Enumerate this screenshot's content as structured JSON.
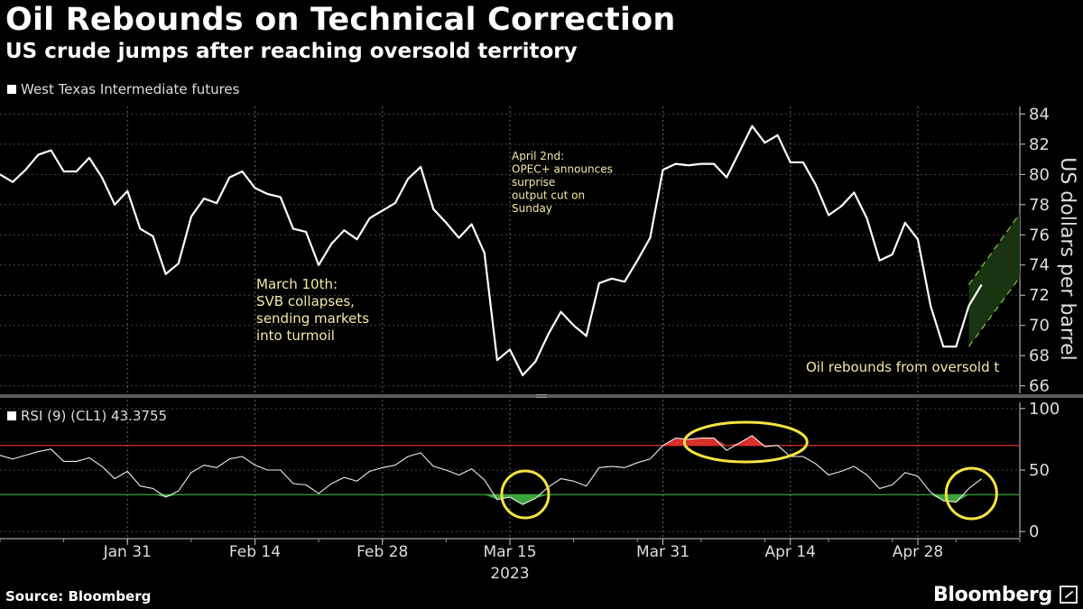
{
  "title": "Oil Rebounds on Technical Correction",
  "subtitle": "US crude jumps after reaching oversold territory",
  "legend": "West Texas Intermediate futures",
  "source": "Source: Bloomberg",
  "brand": "Bloomberg",
  "colors": {
    "background": "#000000",
    "line": "#ffffff",
    "annotation": "#f3e9a3",
    "overbought": "#d9302c",
    "oversold": "#3aa33a",
    "highlight": "#f5e342"
  },
  "chart_data": [
    {
      "type": "line",
      "title": "Oil Rebounds on Technical Correction",
      "subtitle": "US crude jumps after reaching oversold territory",
      "ylabel": "US dollars per barrel",
      "ylim": [
        65.5,
        84.5
      ],
      "yticks": [
        "66",
        "68",
        "70",
        "72",
        "74",
        "76",
        "78",
        "80",
        "82",
        "84"
      ],
      "x_index_range": [
        0,
        80
      ],
      "x_ticks": [
        {
          "i": 10,
          "label": "Jan 31"
        },
        {
          "i": 20,
          "label": "Feb 14"
        },
        {
          "i": 30,
          "label": "Feb 28"
        },
        {
          "i": 40,
          "label": "Mar 15"
        },
        {
          "i": 52,
          "label": "Mar 31"
        },
        {
          "i": 62,
          "label": "Apr 14"
        },
        {
          "i": 72,
          "label": "Apr 28"
        }
      ],
      "year_label": "2023",
      "series": [
        {
          "name": "West Texas Intermediate futures",
          "values": [
            80.0,
            79.5,
            80.3,
            81.3,
            81.6,
            80.2,
            80.2,
            81.1,
            79.8,
            78.0,
            78.9,
            76.4,
            75.9,
            73.4,
            74.1,
            77.2,
            78.4,
            78.1,
            79.8,
            80.2,
            79.1,
            78.7,
            78.5,
            76.4,
            76.2,
            74.0,
            75.4,
            76.3,
            75.7,
            77.1,
            77.6,
            78.1,
            79.7,
            80.5,
            77.7,
            76.8,
            75.8,
            76.7,
            74.8,
            67.7,
            68.4,
            66.7,
            67.6,
            69.4,
            70.9,
            70.0,
            69.3,
            72.8,
            73.1,
            72.9,
            74.3,
            75.8,
            80.3,
            80.7,
            80.6,
            80.7,
            80.7,
            79.8,
            81.5,
            83.2,
            82.1,
            82.6,
            80.8,
            80.8,
            79.3,
            77.3,
            77.9,
            78.8,
            77.1,
            74.3,
            74.7,
            76.8,
            75.7,
            71.3,
            68.6,
            68.6,
            71.3,
            72.7
          ]
        }
      ],
      "projection": {
        "from_i": 76,
        "to_i": 80,
        "from_low": 68.6,
        "from_high": 72.7,
        "to_low": 73.2,
        "to_high": 77.4
      },
      "annotations": {
        "svb": [
          "March 10th:",
          "SVB collapses,",
          "sending markets",
          "into turmoil"
        ],
        "opec": [
          "April 2nd:",
          "OPEC+ announces",
          "surprise",
          "output cut on",
          "Sunday"
        ],
        "rebound": "Oil rebounds from oversold t"
      }
    },
    {
      "type": "line",
      "title": "RSI (9) (CL1) 43.3755",
      "ylim": [
        -5,
        105
      ],
      "yticks": [
        "0",
        "50",
        "100"
      ],
      "overbought": 70,
      "oversold": 30,
      "series": [
        {
          "name": "RSI (9) (CL1)",
          "last_value": 43.3755,
          "values": [
            62,
            59,
            62,
            65,
            67,
            57,
            57,
            60,
            53,
            43,
            49,
            37,
            35,
            28,
            33,
            48,
            54,
            52,
            59,
            61,
            54,
            50,
            50,
            39,
            38,
            31,
            39,
            44,
            41,
            49,
            52,
            54,
            61,
            64,
            53,
            50,
            46,
            51,
            42,
            26,
            28,
            22,
            27,
            36,
            43,
            41,
            37,
            52,
            53,
            52,
            56,
            59,
            70,
            76,
            75,
            76,
            76,
            66,
            72,
            78,
            69,
            70,
            61,
            61,
            55,
            46,
            49,
            53,
            46,
            35,
            38,
            48,
            45,
            32,
            25,
            24,
            35,
            43
          ]
        }
      ],
      "highlights": [
        "Mar 15 oversold",
        "early April overbought",
        "late April oversold"
      ]
    }
  ]
}
